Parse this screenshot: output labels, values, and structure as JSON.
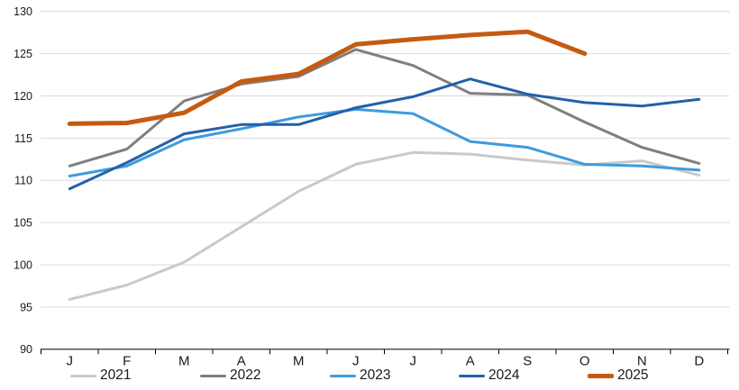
{
  "chart_data": {
    "type": "line",
    "title": "",
    "categories": [
      "J",
      "F",
      "M",
      "A",
      "M",
      "J",
      "J",
      "A",
      "S",
      "O",
      "N",
      "D"
    ],
    "y_axis": {
      "min": 90,
      "max": 130,
      "step": 5,
      "tick_labels": [
        "90",
        "95",
        "100",
        "105",
        "110",
        "115",
        "120",
        "125",
        "130"
      ]
    },
    "grid": true,
    "legend_position": "bottom",
    "series": [
      {
        "name": "2021",
        "color": "#C9C9C9",
        "line_width": 3,
        "values": [
          95.9,
          97.6,
          100.3,
          104.5,
          108.7,
          111.9,
          113.3,
          113.1,
          112.4,
          111.8,
          112.3,
          110.6
        ]
      },
      {
        "name": "2022",
        "color": "#7F7F7F",
        "line_width": 3,
        "values": [
          111.7,
          113.7,
          119.4,
          121.4,
          122.3,
          125.5,
          123.6,
          120.3,
          120.1,
          116.9,
          113.9,
          112.0
        ]
      },
      {
        "name": "2023",
        "color": "#3E9BDC",
        "line_width": 3,
        "values": [
          110.5,
          111.7,
          114.8,
          116.1,
          117.5,
          118.4,
          117.9,
          114.6,
          113.9,
          111.9,
          111.7,
          111.2
        ]
      },
      {
        "name": "2024",
        "color": "#2361A9",
        "line_width": 3,
        "values": [
          109.0,
          112.1,
          115.5,
          116.6,
          116.6,
          118.6,
          119.9,
          122.0,
          120.2,
          119.2,
          118.8,
          119.6
        ]
      },
      {
        "name": "2025",
        "color": "#C55A11",
        "line_width": 5,
        "values": [
          116.7,
          116.8,
          118.0,
          121.7,
          122.6,
          126.1,
          126.7,
          127.2,
          127.6,
          125.0
        ]
      }
    ],
    "colors": {
      "gridline": "#D9D9D9",
      "axis_line": "#000000",
      "tick_text": "#1a1a1a"
    }
  }
}
